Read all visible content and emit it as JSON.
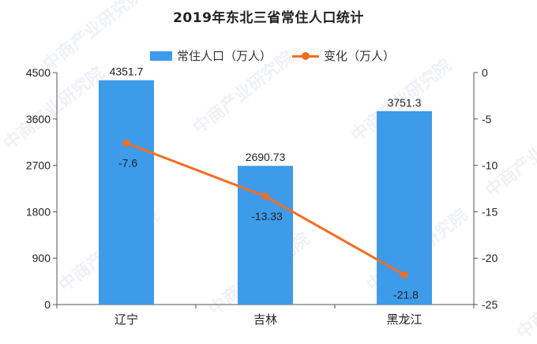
{
  "title": "2019年东北三省常住人口统计",
  "legend": {
    "bar_label": "常住人口（万人）",
    "line_label": "变化（万人）"
  },
  "watermark": "中商产业研究院",
  "colors": {
    "bar": "#3d9bea",
    "line": "#f36d21",
    "axis": "#555555",
    "text": "#222222"
  },
  "chart_data": {
    "type": "bar",
    "title": "2019年东北三省常住人口统计",
    "categories": [
      "辽宁",
      "吉林",
      "黑龙江"
    ],
    "series": [
      {
        "name": "常住人口（万人）",
        "type": "bar",
        "axis": "left",
        "values": [
          4351.7,
          2690.73,
          3751.3
        ],
        "labels": [
          "4351.7",
          "2690.73",
          "3751.3"
        ]
      },
      {
        "name": "变化（万人）",
        "type": "line",
        "axis": "right",
        "values": [
          -7.6,
          -13.33,
          -21.8
        ],
        "labels": [
          "-7.6",
          "-13.33",
          "-21.8"
        ]
      }
    ],
    "y_left": {
      "ylim": [
        0,
        4500
      ],
      "ticks": [
        "0",
        "900",
        "1800",
        "2700",
        "3600",
        "4500"
      ]
    },
    "y_right": {
      "ylim": [
        -25,
        0
      ],
      "ticks": [
        "0",
        "-5",
        "-10",
        "-15",
        "-20",
        "-25"
      ]
    },
    "legend_position": "top",
    "grid": false
  }
}
